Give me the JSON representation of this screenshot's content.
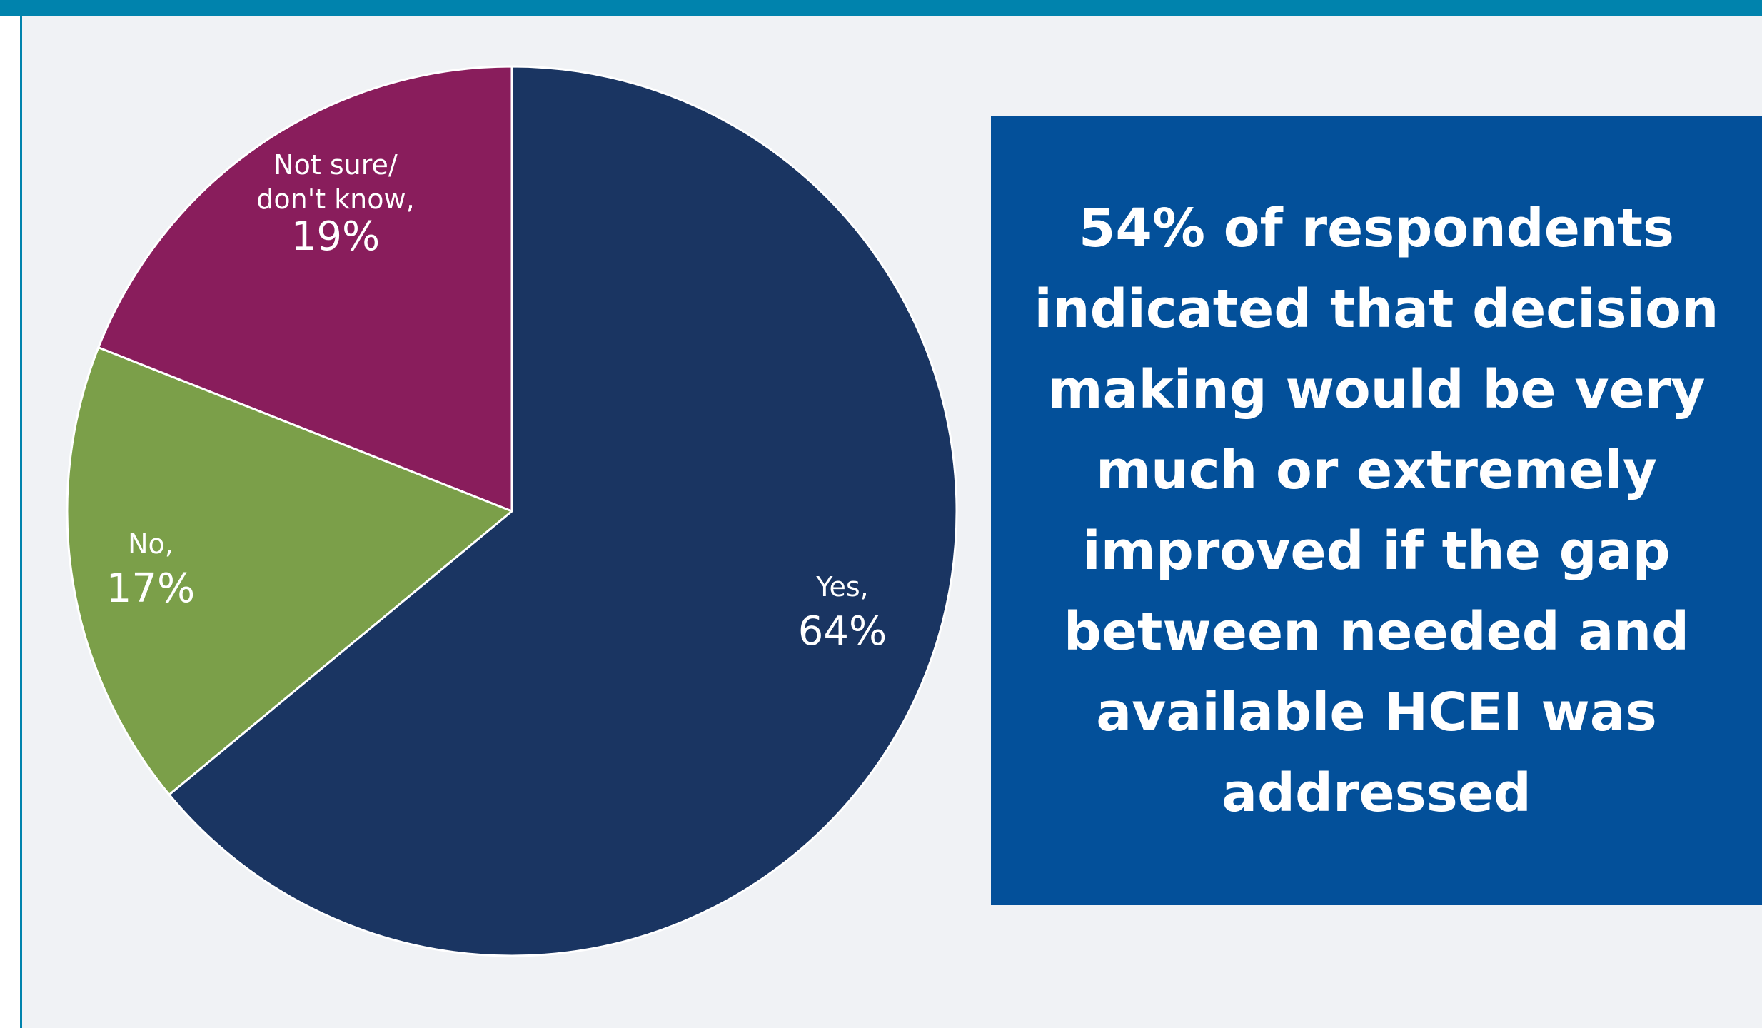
{
  "chart_data": {
    "type": "pie",
    "categories": [
      "Yes",
      "No",
      "Not sure/ don't know"
    ],
    "values": [
      64,
      17,
      19
    ],
    "unit": "%",
    "colors": [
      "#1a3562",
      "#7b9f49",
      "#891d5c"
    ],
    "labels": [
      {
        "lines": [
          "Yes,"
        ],
        "value": "64%"
      },
      {
        "lines": [
          "No,"
        ],
        "value": "17%"
      },
      {
        "lines": [
          "Not sure/",
          "don't know,"
        ],
        "value": "19%"
      }
    ]
  },
  "callout": {
    "text": "54% of respondents indicated that decision making would be very much or extremely improved if the gap between needed and available HCEI was addressed"
  },
  "colors": {
    "accent": "#0083ad",
    "callout_background": "#03509a",
    "page_background": "#f0f2f5"
  }
}
